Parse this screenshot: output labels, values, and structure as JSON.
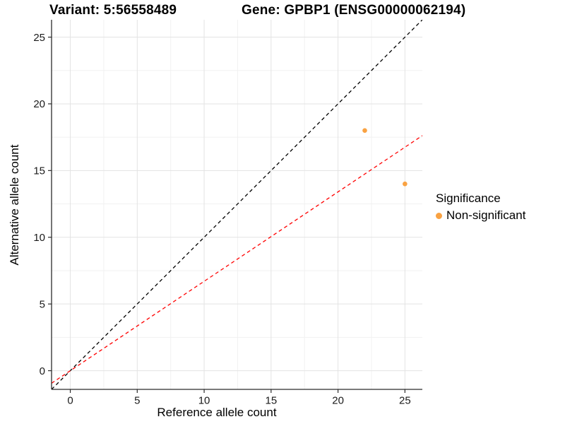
{
  "figure": {
    "title_left": "Variant: 5:56558489",
    "title_right": "Gene: GPBP1 (ENSG00000062194)"
  },
  "chart_data": {
    "type": "scatter",
    "title": "Variant: 5:56558489    Gene: GPBP1 (ENSG00000062194)",
    "xlabel": "Reference allele count",
    "ylabel": "Alternative allele count",
    "xlim": [
      -1.4,
      26.3
    ],
    "ylim": [
      -1.4,
      26.3
    ],
    "x_ticks": [
      0,
      5,
      10,
      15,
      20,
      25
    ],
    "y_ticks": [
      0,
      5,
      10,
      15,
      20,
      25
    ],
    "x_minor_ticks": [
      2.5,
      7.5,
      12.5,
      17.5,
      22.5
    ],
    "y_minor_ticks": [
      2.5,
      7.5,
      12.5,
      17.5,
      22.5
    ],
    "grid": "major+minor",
    "series": [
      {
        "name": "Non-significant",
        "color": "#F9A242",
        "marker": "circle",
        "points": [
          {
            "x": 22,
            "y": 18
          },
          {
            "x": 25,
            "y": 14
          }
        ]
      }
    ],
    "reference_lines": [
      {
        "name": "identity-line",
        "slope": 1,
        "intercept": 0,
        "color": "#000000",
        "style": "dashed"
      },
      {
        "name": "allelic-ratio-line",
        "slope": 0.67,
        "intercept": 0,
        "color": "#FF0000",
        "style": "dashed"
      }
    ],
    "legend": {
      "title": "Significance",
      "position": "right",
      "items": [
        {
          "label": "Non-significant",
          "color": "#F9A242"
        }
      ]
    }
  },
  "colors": {
    "background": "#FFFFFF",
    "grid_major": "#E3E3E3",
    "grid_minor": "#F1F1F1",
    "axis_line": "#2B2B2B",
    "tick_text": "#1A1A1A"
  }
}
